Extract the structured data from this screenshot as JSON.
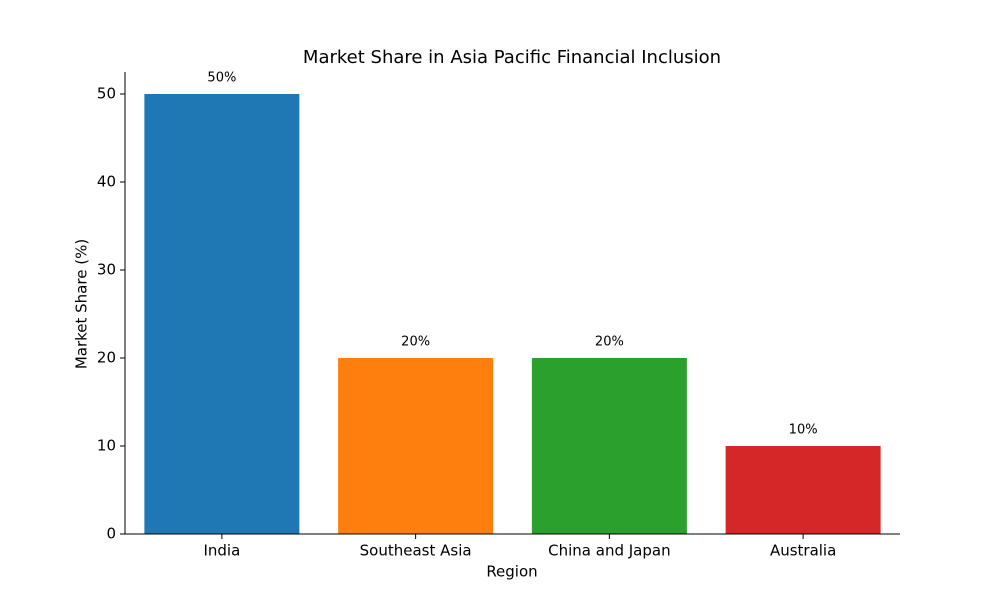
{
  "chart_data": {
    "type": "bar",
    "title": "Market Share in Asia Pacific Financial Inclusion",
    "x_label": "Region",
    "y_label": "Market Share (%)",
    "categories": [
      "India",
      "Southeast Asia",
      "China and Japan",
      "Australia"
    ],
    "values": [
      50,
      20,
      20,
      10
    ],
    "value_labels": [
      "50%",
      "20%",
      "20%",
      "10%"
    ],
    "colors": [
      "#1f77b4",
      "#ff7f0e",
      "#2ca02c",
      "#d62728"
    ],
    "ylim": [
      0,
      52.5
    ],
    "yticks": [
      0,
      10,
      20,
      30,
      40,
      50
    ]
  }
}
